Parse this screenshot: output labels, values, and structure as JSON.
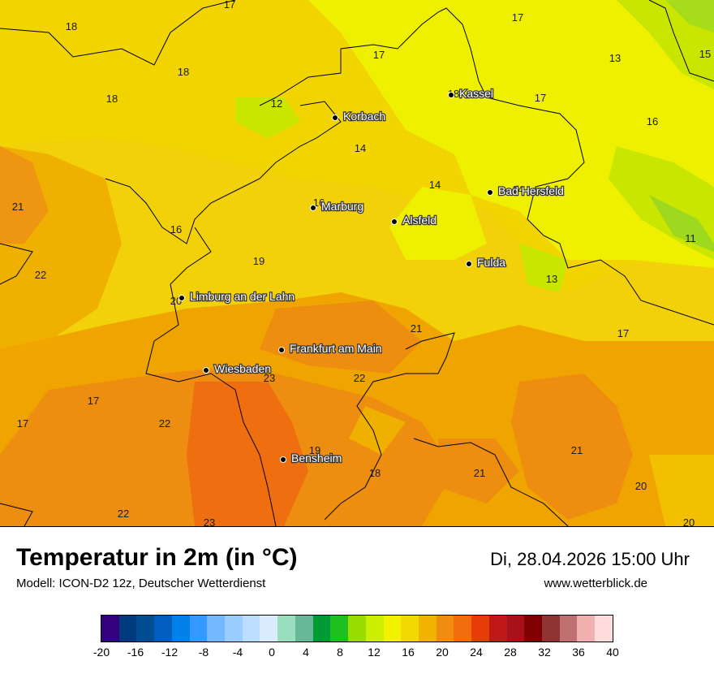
{
  "title": "Temperatur in 2m (in °C)",
  "model": "Modell: ICON-D2 12z, Deutscher Wetterdienst",
  "datetime": "Di, 28.04.2026 15:00 Uhr",
  "website": "www.wetterblick.de",
  "cities": [
    {
      "name": "Kassel"
    },
    {
      "name": "Korbach"
    },
    {
      "name": "Marburg"
    },
    {
      "name": "Alsfeld"
    },
    {
      "name": "Bad Hersfeld"
    },
    {
      "name": "Fulda"
    },
    {
      "name": "Limburg an der Lahn"
    },
    {
      "name": "Frankfurt am Main"
    },
    {
      "name": "Wiesbaden"
    },
    {
      "name": "Bensheim"
    }
  ],
  "temperature_labels": [
    "17",
    "18",
    "18",
    "18",
    "17",
    "17",
    "13",
    "15",
    "12",
    "18",
    "17",
    "16",
    "14",
    "14",
    "14",
    "21",
    "16",
    "16",
    "11",
    "22",
    "19",
    "20",
    "13",
    "21",
    "17",
    "23",
    "22",
    "17",
    "17",
    "22",
    "19",
    "18",
    "21",
    "21",
    "20",
    "22",
    "23",
    "20"
  ],
  "legend": {
    "colors": [
      "#33007f",
      "#003b80",
      "#004d91",
      "#005ebf",
      "#0080e8",
      "#3399ff",
      "#74b9ff",
      "#99ccff",
      "#bbddff",
      "#d9ecff",
      "#99dfbf",
      "#66b899",
      "#009933",
      "#1fbf1f",
      "#99dd00",
      "#ccee00",
      "#f2f200",
      "#f0d800",
      "#f0b400",
      "#f08c10",
      "#f06c0c",
      "#e83c08",
      "#c01818",
      "#a8101a",
      "#7f0000",
      "#8f3433",
      "#c07070",
      "#f0b0b0",
      "#ffdddd"
    ],
    "ticks": [
      "-20",
      "-16",
      "-12",
      "-8",
      "-4",
      "0",
      "4",
      "8",
      "12",
      "16",
      "20",
      "24",
      "28",
      "32",
      "36",
      "40"
    ]
  }
}
